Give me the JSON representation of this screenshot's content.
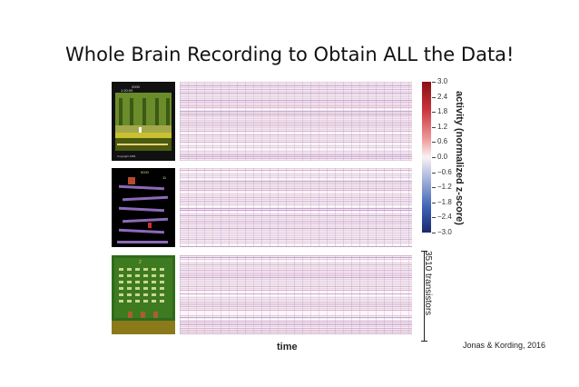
{
  "slide": {
    "title": "Whole Brain Recording to Obtain ALL the Data!",
    "citation": "Jonas & Kording, 2016"
  },
  "figure": {
    "games": [
      {
        "name": "pitfall",
        "score": "2000",
        "timer": "1:20:00",
        "footer": "Copyright 1982"
      },
      {
        "name": "donkey-kong",
        "score": "5000",
        "lives": "11"
      },
      {
        "name": "space-invaders",
        "score": "2"
      }
    ],
    "colorbar": {
      "label": "activity (normalized z-score)",
      "ticks": [
        "3.0",
        "2.4",
        "1.8",
        "1.2",
        "0.6",
        "0.0",
        "−0.6",
        "−1.2",
        "−1.8",
        "−2.4",
        "−3.0"
      ],
      "colors": {
        "high": "#8a1015",
        "mid": "#f8f2f4",
        "low": "#1a2a6b"
      }
    },
    "y_axis_label": "3510 transistors",
    "x_axis_label": "time"
  }
}
